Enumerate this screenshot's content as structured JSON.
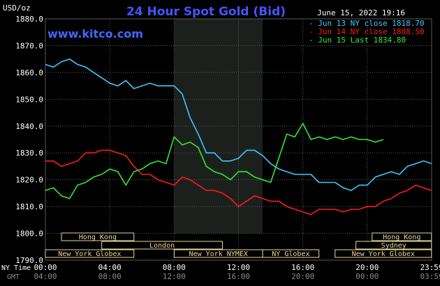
{
  "chart_data": {
    "type": "line",
    "title": "24 Hour Spot Gold (Bid)",
    "ylabel": "USD/oz",
    "watermark": "www.kitco.com",
    "timestamp": "June 15, 2022 19:16",
    "ylim": [
      1790,
      1880
    ],
    "yticks": [
      "1880.0",
      "1870.0",
      "1860.0",
      "1850.0",
      "1840.0",
      "1830.0",
      "1820.0",
      "1810.0",
      "1800.0",
      "1790.0"
    ],
    "xlim": [
      0,
      24
    ],
    "xticks_ny": [
      "00:00",
      "04:00",
      "08:00",
      "12:00",
      "16:00",
      "20:00",
      "23:59"
    ],
    "xticks_gmt": [
      "04:00",
      "08:00",
      "12:00",
      "16:00",
      "20:00",
      "00:00",
      "03:59"
    ],
    "axis_row_labels": {
      "ny": "NY Time",
      "gmt": "GMT"
    },
    "grid": true,
    "legend_placement": "top-right",
    "shaded_session": [
      8,
      13.5
    ],
    "series": [
      {
        "name": "Jun 13 NY close 1818.70",
        "color": "#3fc8ff",
        "x": [
          0,
          0.5,
          1,
          1.5,
          2,
          2.5,
          3,
          3.5,
          4,
          4.5,
          5,
          5.5,
          6,
          6.5,
          7,
          7.5,
          8,
          8.5,
          9,
          9.5,
          10,
          10.5,
          11,
          11.5,
          12,
          12.5,
          13,
          13.5,
          14,
          14.5,
          15,
          15.5,
          16,
          16.5,
          17,
          17.5,
          18,
          18.5,
          19,
          19.5,
          20,
          20.5,
          21,
          21.5,
          22,
          22.5,
          23,
          23.5,
          23.99
        ],
        "y": [
          1863,
          1862,
          1864,
          1865,
          1863,
          1862,
          1860,
          1858,
          1856,
          1855,
          1857,
          1854,
          1855,
          1856,
          1855,
          1855,
          1855,
          1852,
          1843,
          1837,
          1830,
          1830,
          1827,
          1827,
          1828,
          1831,
          1831,
          1829,
          1826,
          1824,
          1823,
          1822,
          1822,
          1822,
          1819,
          1819,
          1819,
          1817,
          1816,
          1818,
          1818,
          1821,
          1822,
          1823,
          1822,
          1825,
          1826,
          1827,
          1826
        ]
      },
      {
        "name": "Jun 14 NY close 1808.50",
        "color": "#ff1a1a",
        "x": [
          0,
          0.5,
          1,
          1.5,
          2,
          2.5,
          3,
          3.5,
          4,
          4.5,
          5,
          5.5,
          6,
          6.5,
          7,
          7.5,
          8,
          8.5,
          9,
          9.5,
          10,
          10.5,
          11,
          11.5,
          12,
          12.5,
          13,
          13.5,
          14,
          14.5,
          15,
          15.5,
          16,
          16.5,
          17,
          17.5,
          18,
          18.5,
          19,
          19.5,
          20,
          20.5,
          21,
          21.5,
          22,
          22.5,
          23,
          23.5,
          23.99
        ],
        "y": [
          1827,
          1827,
          1825,
          1826,
          1827,
          1830,
          1830,
          1831,
          1831,
          1830,
          1829,
          1825,
          1822,
          1822,
          1820,
          1819,
          1818,
          1821,
          1820,
          1818,
          1816,
          1816,
          1815,
          1813,
          1810,
          1812,
          1814,
          1813,
          1812,
          1812,
          1810,
          1809,
          1808,
          1807,
          1809,
          1809,
          1809,
          1808,
          1809,
          1809,
          1810,
          1810,
          1812,
          1813,
          1815,
          1816,
          1818,
          1817,
          1816
        ]
      },
      {
        "name": "Jun 15 Last 1834.80",
        "color": "#33e833",
        "x": [
          0,
          0.5,
          1,
          1.5,
          2,
          2.5,
          3,
          3.5,
          4,
          4.5,
          5,
          5.5,
          6,
          6.5,
          7,
          7.5,
          8,
          8.5,
          9,
          9.5,
          10,
          10.5,
          11,
          11.5,
          12,
          12.5,
          13,
          13.5,
          14,
          14.5,
          15,
          15.5,
          16,
          16.5,
          17,
          17.5,
          18,
          18.5,
          19,
          19.5,
          20,
          20.5,
          21
        ],
        "y": [
          1816,
          1817,
          1814,
          1813,
          1818,
          1819,
          1821,
          1822,
          1824,
          1823,
          1818,
          1823,
          1824,
          1826,
          1827,
          1826,
          1836,
          1833,
          1834,
          1832,
          1825,
          1823,
          1822,
          1820,
          1823,
          1823,
          1821,
          1820,
          1819,
          1828,
          1837,
          1836,
          1841,
          1835,
          1836,
          1835,
          1836,
          1835,
          1836,
          1835,
          1835,
          1834,
          1835
        ]
      }
    ],
    "market_sessions": [
      {
        "label": "Hong Kong",
        "start": 1.0,
        "end": 5.5
      },
      {
        "label": "London",
        "start": 3.5,
        "end": 11.0
      },
      {
        "label": "New York Globex",
        "start": 0.0,
        "end": 5.5
      },
      {
        "label": "New York NYMEX",
        "start": 8.0,
        "end": 13.5
      },
      {
        "label": "NY Globex",
        "start": 13.5,
        "end": 17.0
      },
      {
        "label": "Hong Kong",
        "start": 20.3,
        "end": 23.99
      },
      {
        "label": "Sydney",
        "start": 19.3,
        "end": 23.99
      },
      {
        "label": "New York Globex",
        "start": 18.0,
        "end": 23.99
      }
    ]
  },
  "colors": {
    "background": "#000000",
    "title": "#4455ff",
    "watermark": "#4466ff",
    "grid": "#5a5a5a",
    "axis_text": "#ffffff",
    "gmt_text": "#8a8a8a",
    "shade": "#1c201c",
    "session_fill": "#e8d89a"
  }
}
